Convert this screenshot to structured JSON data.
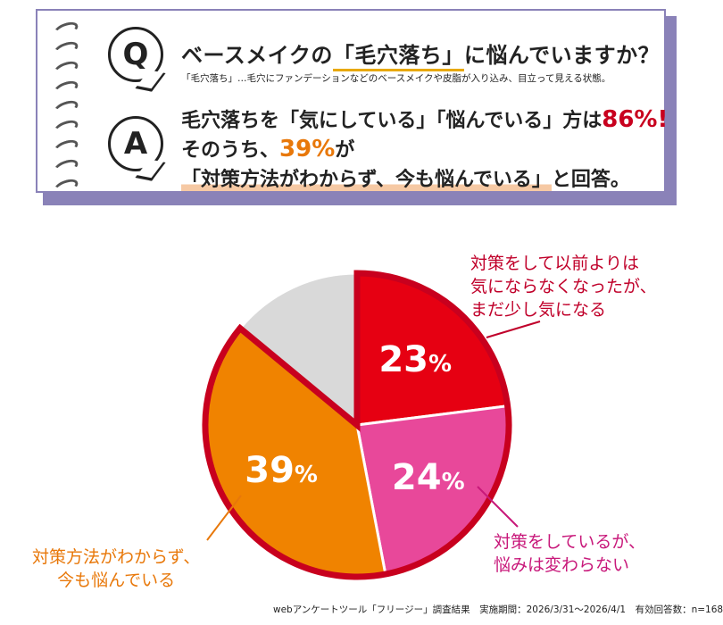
{
  "question": {
    "text_before": "ベースメイクの",
    "highlight": "「毛穴落ち」",
    "text_after": "に悩んでいますか？",
    "note": "「毛穴落ち」…毛穴にファンデーションなどのベースメイクや皮脂が入り込み、目立って見える状態。",
    "badge": "Q"
  },
  "answer": {
    "badge": "A",
    "line1_before": "毛穴落ちを「気にしている」「悩んでいる」方は",
    "line1_value": "86%",
    "line1_after": "!",
    "line2_before": "そのうち、",
    "line2_value": "39%",
    "line2_after": "が",
    "line3_mark": "「対策方法がわからず、今も悩んでいる」",
    "line3_after": "と回答。"
  },
  "chart_data": {
    "type": "pie",
    "slices": [
      {
        "label": "対策をして以前よりは気にならなくなったが、まだ少し気になる",
        "value": 23,
        "display": "23",
        "color": "#e60012"
      },
      {
        "label": "対策をしているが、悩みは変わらない",
        "value": 24,
        "display": "24",
        "color": "#e8489a"
      },
      {
        "label": "対策方法がわからず、今も悩んでいる",
        "value": 39,
        "display": "39",
        "color": "#f08300"
      },
      {
        "label": "",
        "value": 14,
        "display": "",
        "color": "#d9d9d9"
      }
    ],
    "percent_sign": "%",
    "outline_color": "#c8001e"
  },
  "annotations": {
    "red": [
      "対策をして以前よりは",
      "気にならなくなったが、",
      "まだ少し気になる"
    ],
    "pink": [
      "対策をしているが、",
      "悩みは変わらない"
    ],
    "orange": [
      "対策方法がわからず、",
      "今も悩んでいる"
    ]
  },
  "footer": "webアンケートツール「フリージー」調査結果　実施期間：2026/3/31～2026/4/1　有効回答数：n=168",
  "colors": {
    "accent_red": "#c8001e",
    "accent_orange": "#e8780a",
    "accent_pink": "#c8187a",
    "frame_purple": "#8a82b8"
  }
}
